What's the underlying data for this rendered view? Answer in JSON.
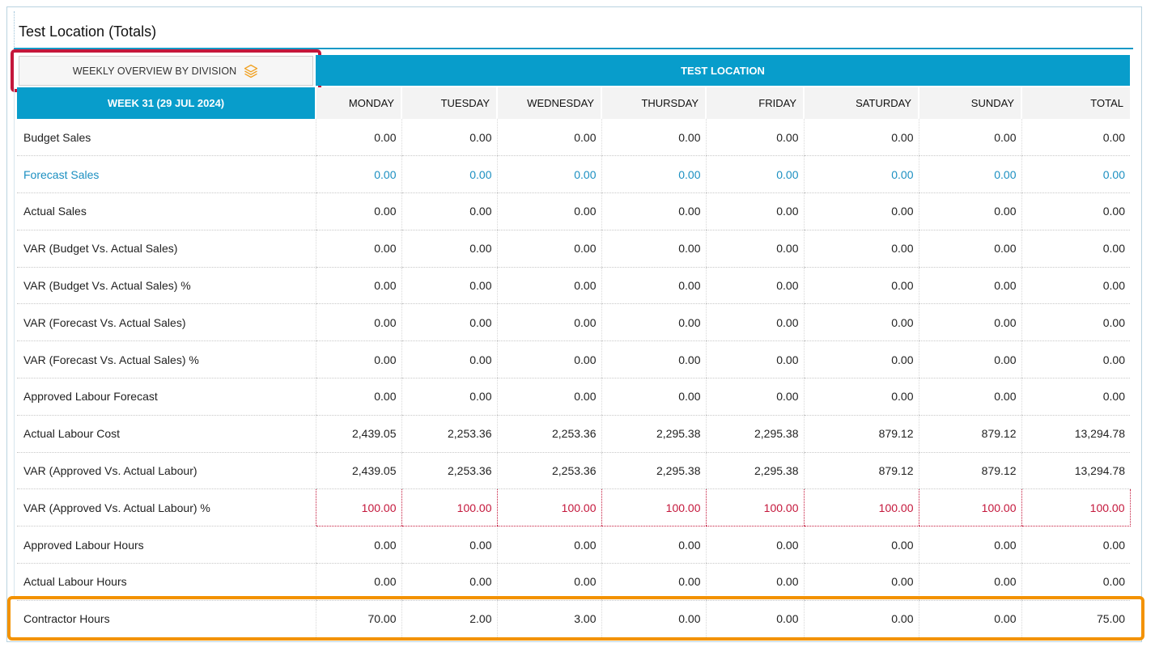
{
  "window": {
    "title": "Test Location (Totals)"
  },
  "toolbar": {
    "overview_label": "WEEKLY OVERVIEW BY DIVISION",
    "overview_icon": "layers-icon"
  },
  "location_header": "TEST LOCATION",
  "week_label": "WEEK 31 (29 JUL 2024)",
  "columns": [
    "MONDAY",
    "TUESDAY",
    "WEDNESDAY",
    "THURSDAY",
    "FRIDAY",
    "SATURDAY",
    "SUNDAY",
    "TOTAL"
  ],
  "rows": [
    {
      "label": "Budget Sales",
      "values": [
        "0.00",
        "0.00",
        "0.00",
        "0.00",
        "0.00",
        "0.00",
        "0.00",
        "0.00"
      ]
    },
    {
      "label": "Forecast Sales",
      "values": [
        "0.00",
        "0.00",
        "0.00",
        "0.00",
        "0.00",
        "0.00",
        "0.00",
        "0.00"
      ]
    },
    {
      "label": "Actual Sales",
      "values": [
        "0.00",
        "0.00",
        "0.00",
        "0.00",
        "0.00",
        "0.00",
        "0.00",
        "0.00"
      ]
    },
    {
      "label": "VAR (Budget Vs. Actual Sales)",
      "values": [
        "0.00",
        "0.00",
        "0.00",
        "0.00",
        "0.00",
        "0.00",
        "0.00",
        "0.00"
      ]
    },
    {
      "label": "VAR (Budget Vs. Actual Sales) %",
      "values": [
        "0.00",
        "0.00",
        "0.00",
        "0.00",
        "0.00",
        "0.00",
        "0.00",
        "0.00"
      ]
    },
    {
      "label": "VAR (Forecast Vs. Actual Sales)",
      "values": [
        "0.00",
        "0.00",
        "0.00",
        "0.00",
        "0.00",
        "0.00",
        "0.00",
        "0.00"
      ]
    },
    {
      "label": "VAR (Forecast Vs. Actual Sales) %",
      "values": [
        "0.00",
        "0.00",
        "0.00",
        "0.00",
        "0.00",
        "0.00",
        "0.00",
        "0.00"
      ]
    },
    {
      "label": "Approved Labour Forecast",
      "values": [
        "0.00",
        "0.00",
        "0.00",
        "0.00",
        "0.00",
        "0.00",
        "0.00",
        "0.00"
      ]
    },
    {
      "label": "Actual Labour Cost",
      "values": [
        "2,439.05",
        "2,253.36",
        "2,253.36",
        "2,295.38",
        "2,295.38",
        "879.12",
        "879.12",
        "13,294.78"
      ]
    },
    {
      "label": "VAR (Approved Vs. Actual Labour)",
      "values": [
        "2,439.05",
        "2,253.36",
        "2,253.36",
        "2,295.38",
        "2,295.38",
        "879.12",
        "879.12",
        "13,294.78"
      ]
    },
    {
      "label": "VAR (Approved Vs. Actual Labour) %",
      "values": [
        "100.00",
        "100.00",
        "100.00",
        "100.00",
        "100.00",
        "100.00",
        "100.00",
        "100.00"
      ]
    },
    {
      "label": "Approved Labour Hours",
      "values": [
        "0.00",
        "0.00",
        "0.00",
        "0.00",
        "0.00",
        "0.00",
        "0.00",
        "0.00"
      ]
    },
    {
      "label": "Actual Labour Hours",
      "values": [
        "0.00",
        "0.00",
        "0.00",
        "0.00",
        "0.00",
        "0.00",
        "0.00",
        "0.00"
      ]
    },
    {
      "label": "Contractor Hours",
      "values": [
        "70.00",
        "2.00",
        "3.00",
        "0.00",
        "0.00",
        "0.00",
        "0.00",
        "75.00"
      ]
    }
  ],
  "colors": {
    "accent": "#089dcb",
    "forecast_text": "#1b8fc1",
    "negative_pct": "#c4173b",
    "highlight_button": "#c4173b",
    "highlight_row": "#f39200"
  }
}
